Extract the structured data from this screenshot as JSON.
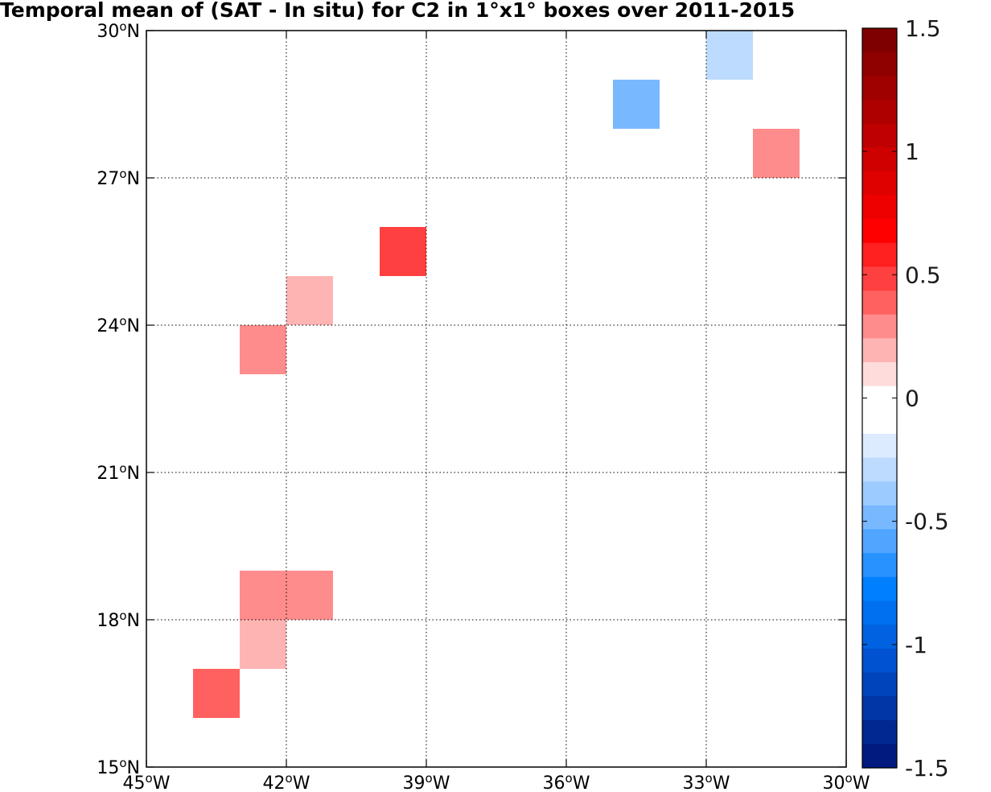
{
  "chart_data": {
    "type": "heatmap",
    "title": "Temporal mean of (SAT - In situ) for C2 in 1°x1° boxes over 2011-2015",
    "xlabel": "",
    "ylabel": "",
    "xlim": [
      -45,
      -30
    ],
    "ylim": [
      15,
      30
    ],
    "grid": true,
    "x_ticks": [
      {
        "value": -45,
        "label": "45",
        "suffix": "W"
      },
      {
        "value": -42,
        "label": "42",
        "suffix": "W"
      },
      {
        "value": -39,
        "label": "39",
        "suffix": "W"
      },
      {
        "value": -36,
        "label": "36",
        "suffix": "W"
      },
      {
        "value": -33,
        "label": "33",
        "suffix": "W"
      },
      {
        "value": -30,
        "label": "30",
        "suffix": "W"
      }
    ],
    "y_ticks": [
      {
        "value": 15,
        "label": "15",
        "suffix": "N"
      },
      {
        "value": 18,
        "label": "18",
        "suffix": "N"
      },
      {
        "value": 21,
        "label": "21",
        "suffix": "N"
      },
      {
        "value": 24,
        "label": "24",
        "suffix": "N"
      },
      {
        "value": 27,
        "label": "27",
        "suffix": "N"
      },
      {
        "value": 30,
        "label": "30",
        "suffix": "N"
      }
    ],
    "degree_symbol": "o",
    "cells": [
      {
        "lon": -33,
        "lat": 29,
        "value": -0.3
      },
      {
        "lon": -35,
        "lat": 28,
        "value": -0.45
      },
      {
        "lon": -34,
        "lat": 28,
        "value": -0.1
      },
      {
        "lon": -35,
        "lat": 27,
        "value": -0.1
      },
      {
        "lon": -32,
        "lat": 27,
        "value": 0.3
      },
      {
        "lon": -40,
        "lat": 25,
        "value": 0.5
      },
      {
        "lon": -42,
        "lat": 24,
        "value": 0.15
      },
      {
        "lon": -43,
        "lat": 23,
        "value": 0.3
      },
      {
        "lon": -38,
        "lat": 23,
        "value": -0.1
      },
      {
        "lon": -39,
        "lat": 22,
        "value": -0.1
      },
      {
        "lon": -43,
        "lat": 18,
        "value": 0.3
      },
      {
        "lon": -42,
        "lat": 18,
        "value": 0.3
      },
      {
        "lon": -43,
        "lat": 17,
        "value": 0.15
      },
      {
        "lon": -44,
        "lat": 16,
        "value": 0.4
      }
    ],
    "colorbar": {
      "min": -1.5,
      "max": 1.5,
      "ticks": [
        {
          "value": 1.5,
          "label": "1.5"
        },
        {
          "value": 1.0,
          "label": "1"
        },
        {
          "value": 0.5,
          "label": "0.5"
        },
        {
          "value": 0.0,
          "label": "0"
        },
        {
          "value": -0.5,
          "label": "-0.5"
        },
        {
          "value": -1.0,
          "label": "-1"
        },
        {
          "value": -1.5,
          "label": "-1.5"
        }
      ],
      "colors_top_to_bottom": [
        "#7f0000",
        "#8f0000",
        "#9f0000",
        "#af0000",
        "#bf0000",
        "#cf0000",
        "#df0000",
        "#ef0000",
        "#ff0000",
        "#ff2020",
        "#ff4040",
        "#ff6060",
        "#ff8c8c",
        "#ffb4b4",
        "#ffdcdc",
        "#ffffff",
        "#ffffff",
        "#dcebff",
        "#bcdbff",
        "#9ccbff",
        "#78b8ff",
        "#50a5ff",
        "#2892ff",
        "#0080ff",
        "#0070f0",
        "#0062e0",
        "#0052d0",
        "#0044bb",
        "#0036a6",
        "#002890",
        "#001a7f"
      ]
    }
  }
}
